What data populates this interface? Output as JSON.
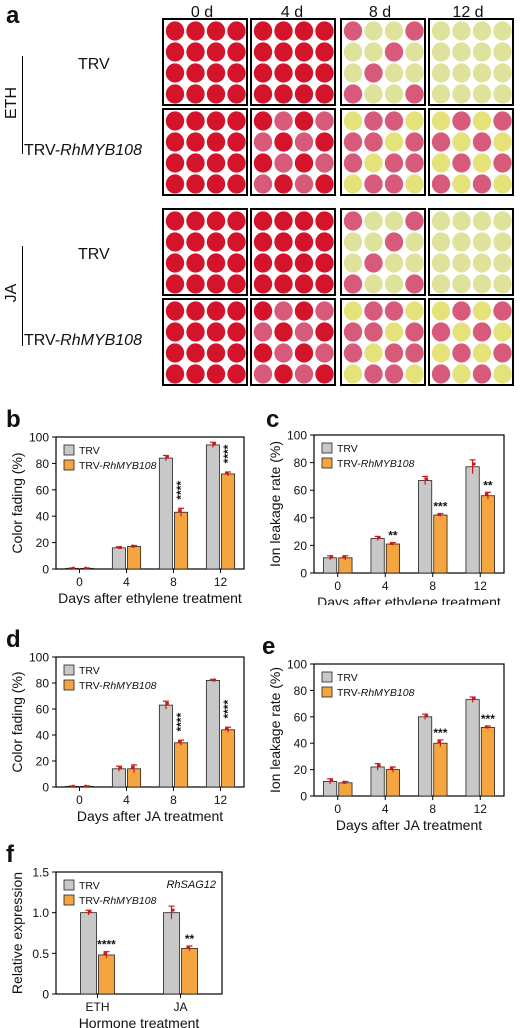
{
  "figure": {
    "panel_a": {
      "letter": "a",
      "days": [
        "0 d",
        "4 d",
        "8 d",
        "12 d"
      ],
      "groups": [
        {
          "treatment": "ETH",
          "rows": [
            {
              "label_prefix": "TRV",
              "label_italic": ""
            },
            {
              "label_prefix": "TRV-",
              "label_italic": "RhMYB108"
            }
          ]
        },
        {
          "treatment": "JA",
          "rows": [
            {
              "label_prefix": "TRV",
              "label_italic": ""
            },
            {
              "label_prefix": "TRV-",
              "label_italic": "RhMYB108"
            }
          ]
        }
      ],
      "colors": {
        "red": "#d4142b",
        "pink": "#d85a7a",
        "pale": "#dfe29a",
        "yellow": "#e6e27a"
      }
    }
  },
  "chart_data": [
    {
      "id": "b",
      "letter": "b",
      "type": "bar",
      "categories": [
        "0",
        "4",
        "8",
        "12"
      ],
      "series": [
        {
          "name": "TRV",
          "values": [
            0.5,
            16,
            84,
            94
          ],
          "errors": [
            0.3,
            0.8,
            2,
            2
          ],
          "color": "#c8c8c8"
        },
        {
          "name": "TRV-RhMYB108",
          "values": [
            0.5,
            17,
            43,
            72
          ],
          "errors": [
            0.3,
            0.8,
            3,
            1.5
          ],
          "color": "#f5a540"
        }
      ],
      "legend_entries": [
        {
          "prefix": "TRV",
          "italic": ""
        },
        {
          "prefix": "TRV-",
          "italic": "RhMYB108"
        }
      ],
      "stars": [
        "",
        "",
        "****",
        "****"
      ],
      "star_rotated": true,
      "ylim": [
        0,
        100
      ],
      "yticks": [
        0,
        20,
        40,
        60,
        80,
        100
      ],
      "xlabel": "Days after ethylene treatment",
      "ylabel": "Color fading (%)"
    },
    {
      "id": "c",
      "letter": "c",
      "type": "bar",
      "categories": [
        "0",
        "4",
        "8",
        "12"
      ],
      "series": [
        {
          "name": "TRV",
          "values": [
            11,
            25,
            67,
            77
          ],
          "errors": [
            1.5,
            1.5,
            3,
            5
          ],
          "color": "#c8c8c8"
        },
        {
          "name": "TRV-RhMYB108",
          "values": [
            11,
            21,
            42,
            56
          ],
          "errors": [
            1.5,
            1,
            1,
            2.5
          ],
          "color": "#f5a540"
        }
      ],
      "legend_entries": [
        {
          "prefix": "TRV",
          "italic": ""
        },
        {
          "prefix": "TRV-",
          "italic": "RhMYB108"
        }
      ],
      "stars": [
        "",
        "**",
        "***",
        "**"
      ],
      "star_rotated": false,
      "ylim": [
        0,
        100
      ],
      "yticks": [
        0,
        20,
        40,
        60,
        80,
        100
      ],
      "xlabel": "Days after ethylene treatment",
      "ylabel": "Ion leakage rate (%)"
    },
    {
      "id": "d",
      "letter": "d",
      "type": "bar",
      "categories": [
        "0",
        "4",
        "8",
        "12"
      ],
      "series": [
        {
          "name": "TRV",
          "values": [
            0.5,
            14,
            63,
            82
          ],
          "errors": [
            0.3,
            2,
            3,
            0.8
          ],
          "color": "#c8c8c8"
        },
        {
          "name": "TRV-RhMYB108",
          "values": [
            0.5,
            14,
            34,
            44
          ],
          "errors": [
            0.3,
            3,
            2,
            2
          ],
          "color": "#f5a540"
        }
      ],
      "legend_entries": [
        {
          "prefix": "TRV",
          "italic": ""
        },
        {
          "prefix": "TRV-",
          "italic": "RhMYB108"
        }
      ],
      "stars": [
        "",
        "",
        "****",
        "****"
      ],
      "star_rotated": true,
      "ylim": [
        0,
        100
      ],
      "yticks": [
        0,
        20,
        40,
        60,
        80,
        100
      ],
      "xlabel": "Days after JA treatment",
      "ylabel": "Color fading (%)"
    },
    {
      "id": "e",
      "letter": "e",
      "type": "bar",
      "categories": [
        "0",
        "4",
        "8",
        "12"
      ],
      "series": [
        {
          "name": "TRV",
          "values": [
            11,
            22,
            60,
            73
          ],
          "errors": [
            2,
            2.5,
            2,
            2
          ],
          "color": "#c8c8c8"
        },
        {
          "name": "TRV-RhMYB108",
          "values": [
            10,
            20,
            40,
            52
          ],
          "errors": [
            1,
            2,
            2.5,
            1
          ],
          "color": "#f5a540"
        }
      ],
      "legend_entries": [
        {
          "prefix": "TRV",
          "italic": ""
        },
        {
          "prefix": "TRV-",
          "italic": "RhMYB108"
        }
      ],
      "stars": [
        "",
        "",
        "***",
        "***"
      ],
      "star_rotated": false,
      "ylim": [
        0,
        100
      ],
      "yticks": [
        0,
        20,
        40,
        60,
        80,
        100
      ],
      "xlabel": "Days after JA treatment",
      "ylabel": "Ion leakage rate (%)"
    },
    {
      "id": "f",
      "letter": "f",
      "type": "bar",
      "categories": [
        "ETH",
        "JA"
      ],
      "series": [
        {
          "name": "TRV",
          "values": [
            1.0,
            1.0
          ],
          "errors": [
            0.03,
            0.08
          ],
          "color": "#c8c8c8"
        },
        {
          "name": "TRV-RhMYB108",
          "values": [
            0.48,
            0.56
          ],
          "errors": [
            0.04,
            0.03
          ],
          "color": "#f5a540"
        }
      ],
      "legend_entries": [
        {
          "prefix": "TRV",
          "italic": ""
        },
        {
          "prefix": "TRV-",
          "italic": "RhMYB108"
        }
      ],
      "annotation": "RhSAG12",
      "stars": [
        "****",
        "**"
      ],
      "star_rotated": false,
      "ylim": [
        0,
        1.5
      ],
      "yticks": [
        0,
        0.5,
        1.0,
        1.5
      ],
      "ytick_labels": [
        "0",
        "0.5",
        "1.0",
        "1.5"
      ],
      "xlabel": "Hormone treatment",
      "ylabel": "Relative expression"
    }
  ]
}
